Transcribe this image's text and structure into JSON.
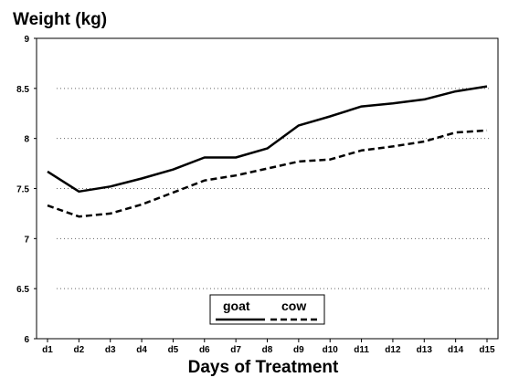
{
  "chart_data": {
    "type": "line",
    "title": "Weight (kg)",
    "xlabel": "Days of Treatment",
    "ylabel": "",
    "ylim": [
      6,
      9
    ],
    "yticks": [
      "6",
      "6.5",
      "7",
      "7.5",
      "8",
      "8.5",
      "9"
    ],
    "categories": [
      "d1",
      "d2",
      "d3",
      "d4",
      "d5",
      "d6",
      "d7",
      "d8",
      "d9",
      "d10",
      "d11",
      "d12",
      "d13",
      "d14",
      "d15"
    ],
    "series": [
      {
        "name": "goat",
        "style": "solid",
        "values": [
          7.67,
          7.47,
          7.52,
          7.6,
          7.69,
          7.81,
          7.81,
          7.9,
          8.13,
          8.22,
          8.32,
          8.35,
          8.39,
          8.47,
          8.52
        ]
      },
      {
        "name": "cow",
        "style": "dashed",
        "values": [
          7.33,
          7.22,
          7.25,
          7.34,
          7.46,
          7.58,
          7.63,
          7.7,
          7.77,
          7.79,
          7.88,
          7.92,
          7.97,
          8.06,
          8.08
        ]
      }
    ],
    "grid": "dotted horizontal",
    "legend": "bottom-center",
    "colors": {
      "line": "#000000",
      "background": "#ffffff"
    }
  }
}
